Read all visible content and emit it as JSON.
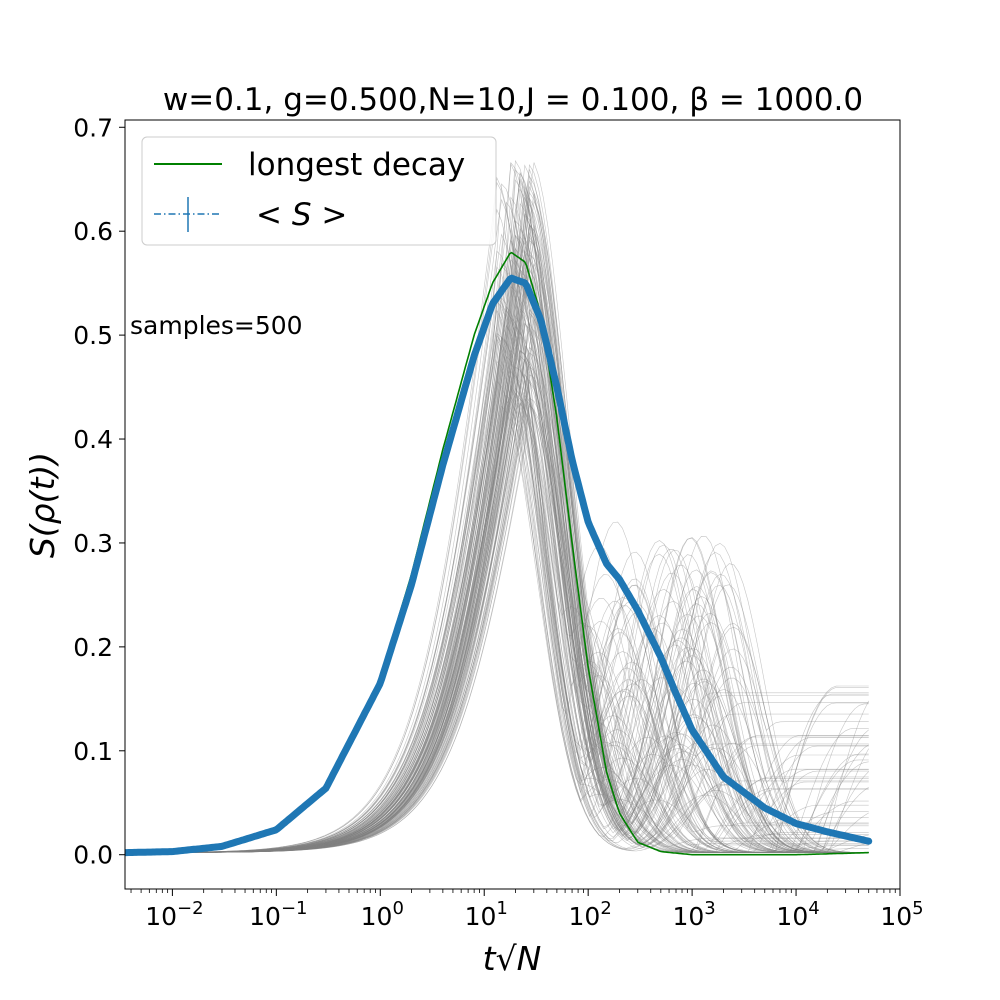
{
  "chart_data": {
    "type": "line",
    "title": "w=0.1, g=0.500,N=10,J = 0.100, β = 1000.0",
    "xlabel": "t√N",
    "ylabel": "S(ρ(t))",
    "xscale": "log",
    "xlim": [
      0.0035,
      100000
    ],
    "ylim": [
      -0.033,
      0.707
    ],
    "x_ticks": [
      {
        "value": 0.01,
        "base": "10",
        "exp": "−2"
      },
      {
        "value": 0.1,
        "base": "10",
        "exp": "−1"
      },
      {
        "value": 1,
        "base": "10",
        "exp": "0"
      },
      {
        "value": 10,
        "base": "10",
        "exp": "1"
      },
      {
        "value": 100,
        "base": "10",
        "exp": "2"
      },
      {
        "value": 1000,
        "base": "10",
        "exp": "3"
      },
      {
        "value": 10000,
        "base": "10",
        "exp": "4"
      },
      {
        "value": 100000,
        "base": "10",
        "exp": "5"
      }
    ],
    "y_ticks": [
      {
        "value": 0.0,
        "label": "0.0"
      },
      {
        "value": 0.1,
        "label": "0.1"
      },
      {
        "value": 0.2,
        "label": "0.2"
      },
      {
        "value": 0.3,
        "label": "0.3"
      },
      {
        "value": 0.4,
        "label": "0.4"
      },
      {
        "value": 0.5,
        "label": "0.5"
      },
      {
        "value": 0.6,
        "label": "0.6"
      },
      {
        "value": 0.7,
        "label": "0.7"
      }
    ],
    "legend": {
      "placement": "upper-left",
      "entries": [
        {
          "label": "longest decay",
          "color": "#008000",
          "style": "solid"
        },
        {
          "label": "< S >",
          "color": "#1f77b4",
          "style": "dashdot-errorbar"
        }
      ]
    },
    "annotation": "samples=500",
    "sample_curves": {
      "count": 500,
      "color": "#808080",
      "peak_x_range": [
        12,
        28
      ],
      "peak_y_range": [
        0.43,
        0.67
      ],
      "plateau_y": 0.167
    },
    "series": [
      {
        "name": "longest decay",
        "color": "#008000",
        "x": [
          0.0035,
          0.01,
          0.03,
          0.1,
          0.3,
          1,
          2,
          4,
          8,
          12,
          18,
          25,
          35,
          50,
          70,
          100,
          150,
          200,
          300,
          500,
          1000,
          3000,
          10000,
          50000
        ],
        "y": [
          0.002,
          0.003,
          0.008,
          0.025,
          0.065,
          0.17,
          0.27,
          0.39,
          0.5,
          0.55,
          0.58,
          0.57,
          0.52,
          0.42,
          0.3,
          0.18,
          0.08,
          0.04,
          0.012,
          0.003,
          0.0,
          0.0,
          0.0,
          0.002
        ]
      },
      {
        "name": "< S >",
        "color": "#1f77b4",
        "x": [
          0.0035,
          0.01,
          0.03,
          0.1,
          0.3,
          1,
          2,
          4,
          8,
          12,
          18,
          25,
          35,
          50,
          70,
          100,
          150,
          200,
          300,
          500,
          700,
          1000,
          2000,
          5000,
          10000,
          20000,
          50000
        ],
        "y": [
          0.002,
          0.003,
          0.008,
          0.024,
          0.064,
          0.165,
          0.26,
          0.375,
          0.48,
          0.53,
          0.555,
          0.55,
          0.515,
          0.45,
          0.38,
          0.32,
          0.28,
          0.265,
          0.235,
          0.19,
          0.155,
          0.12,
          0.075,
          0.045,
          0.03,
          0.022,
          0.013
        ]
      }
    ]
  }
}
